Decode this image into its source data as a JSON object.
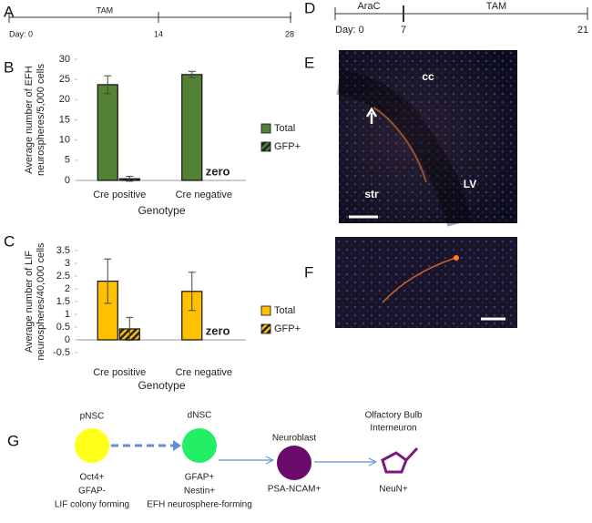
{
  "panel_a": {
    "label": "A",
    "phase": "TAM",
    "ticks": [
      "Day: 0",
      "14",
      "28"
    ]
  },
  "panel_d": {
    "label": "D",
    "phases": [
      "AraC",
      "TAM"
    ],
    "ticks": [
      "Day: 0",
      "7",
      "21"
    ]
  },
  "chart_data": [
    {
      "type": "bar",
      "panel": "B",
      "ylabel": [
        "Average number of EFH",
        "neurospheres/5,000 cells"
      ],
      "xlabel": "Genotype",
      "categories": [
        "Cre positive",
        "Cre negative"
      ],
      "series": [
        {
          "name": "Total",
          "color": "#548235",
          "values": [
            23.7,
            26.2
          ],
          "errors": [
            2.2,
            0.8
          ]
        },
        {
          "name": "GFP+",
          "color": "#548235",
          "pattern": "hatch",
          "values": [
            0.4,
            0
          ],
          "errors": [
            0.6,
            null
          ]
        }
      ],
      "annotation": "zero",
      "ylim": [
        0,
        30
      ],
      "yticks": [
        0,
        5,
        10,
        15,
        20,
        25,
        30
      ],
      "legend": "right"
    },
    {
      "type": "bar",
      "panel": "C",
      "ylabel": [
        "Average number of LIF",
        "neurospheres/40,000 cells"
      ],
      "xlabel": "Genotype",
      "categories": [
        "Cre positive",
        "Cre negative"
      ],
      "series": [
        {
          "name": "Total",
          "color": "#ffc000",
          "values": [
            2.3,
            1.9
          ],
          "errors": [
            0.87,
            0.75
          ]
        },
        {
          "name": "GFP+",
          "color": "#ffc000",
          "pattern": "hatch",
          "values": [
            0.43,
            0
          ],
          "errors": [
            0.45,
            null
          ]
        }
      ],
      "annotation": "zero",
      "ylim": [
        -0.5,
        3.5
      ],
      "yticks": [
        -0.5,
        0,
        0.5,
        1,
        1.5,
        2,
        2.5,
        3,
        3.5
      ],
      "legend": "right"
    }
  ],
  "panel_e": {
    "label": "E",
    "annotations": [
      "cc",
      "str",
      "LV"
    ]
  },
  "panel_f": {
    "label": "F"
  },
  "panel_g": {
    "label": "G",
    "nodes": [
      {
        "name": [
          "pNSC"
        ],
        "markers": [
          "Oct4+",
          "GFAP-",
          "LIF colony forming"
        ]
      },
      {
        "name": [
          "dNSC"
        ],
        "markers": [
          "GFAP+",
          "Nestin+",
          "EFH neurosphere-forming"
        ]
      },
      {
        "name": [
          "Neuroblast"
        ],
        "markers": [
          "PSA-NCAM+"
        ]
      },
      {
        "name": [
          "Olfactory Bulb",
          "Interneuron"
        ],
        "markers": [
          "NeuN+"
        ]
      }
    ]
  }
}
